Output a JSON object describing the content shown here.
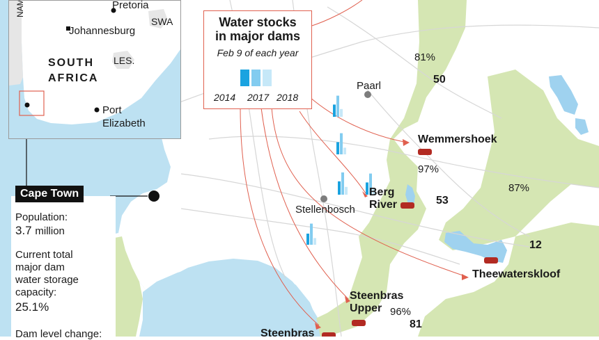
{
  "legend": {
    "title_line1": "Water stocks",
    "title_line2": "in major dams",
    "subtitle": "Feb 9 of each year",
    "years": [
      "2014",
      "2017",
      "2018"
    ],
    "colors": {
      "2014": "#1aa3e0",
      "2017": "#82ccf0",
      "2018": "#c6e8f8"
    }
  },
  "inset": {
    "country": "SOUTH AFRICA",
    "country_line1": "SOUTH",
    "country_line2": "AFRICA",
    "namibia_label": "NAM",
    "cities": {
      "pretoria": "Pretoria",
      "johannesburg": "Johannesburg",
      "port_elizabeth_1": "Port",
      "port_elizabeth_2": "Elizabeth"
    },
    "neighbors": {
      "swaziland": "SWA",
      "lesotho": "LES."
    }
  },
  "city_info": {
    "name": "Cape Town",
    "population_label": "Population:",
    "population_value": "3.7",
    "population_unit": "million",
    "capacity_label_1": "Current total",
    "capacity_label_2": "major dam",
    "capacity_label_3": "water storage",
    "capacity_label_4": "capacity:",
    "capacity_value": "25.1%",
    "change_label": "Dam level change:"
  },
  "places": {
    "paarl": "Paarl",
    "stellenbosch": "Stellenbosch"
  },
  "dams": [
    {
      "id": "wemmershoek",
      "name_1": "Wemmershoek",
      "name_2": "",
      "pct": "97%",
      "num": "",
      "levels": []
    },
    {
      "id": "berg-river",
      "name_1": "Berg",
      "name_2": "River",
      "pct": "",
      "num": "53",
      "levels": []
    },
    {
      "id": "theewaterskloof",
      "name_1": "Theewaterskloof",
      "name_2": "",
      "pct": "87%",
      "num": "12",
      "levels": []
    },
    {
      "id": "steenbras-upper",
      "name_1": "Steenbras",
      "name_2": "Upper",
      "pct": "96%",
      "num": "81",
      "levels": []
    },
    {
      "id": "steenbras-lower",
      "name_1": "Steenbras",
      "name_2": "",
      "pct": "",
      "num": "",
      "levels": []
    }
  ],
  "top_labels": {
    "pct": "81%",
    "num": "50"
  },
  "chart_groups": [
    {
      "dam": "wemmershoek",
      "values": [
        0.55,
        0.95,
        0.35
      ]
    },
    {
      "dam": "wemmershoek-2",
      "values": [
        0.55,
        0.95,
        0.3
      ]
    },
    {
      "dam": "berg-river",
      "values": [
        0.6,
        1.0,
        0.35
      ]
    },
    {
      "dam": "berg-river-2",
      "values": [
        0.55,
        0.95,
        0.3
      ]
    },
    {
      "dam": "theewaterskloof",
      "values": [
        0.5,
        0.95,
        0.3
      ]
    }
  ]
}
